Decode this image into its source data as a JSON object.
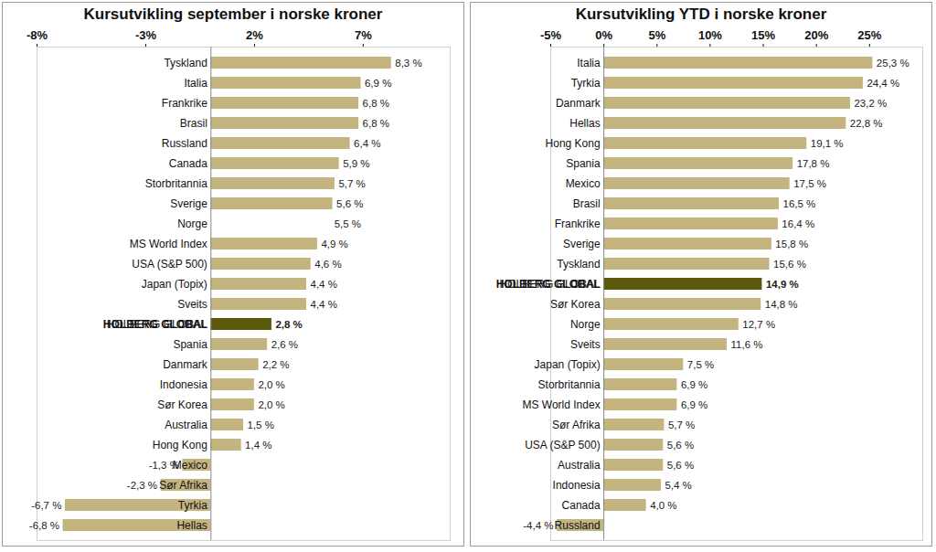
{
  "chart_data": [
    {
      "type": "bar",
      "orientation": "horizontal",
      "data_labels": true,
      "title": "Kursutvikling september i norske kroner",
      "categories": [
        "Tyskland",
        "Italia",
        "Frankrike",
        "Brasil",
        "Russland",
        "Canada",
        "Storbritannia",
        "Sverige",
        "Norge",
        "MS World Index",
        "USA (S&P 500)",
        "Japan (Topix)",
        "Sveits",
        "HOLBERG GLOBAL",
        "Spania",
        "Danmark",
        "Indonesia",
        "Sør Korea",
        "Australia",
        "Hong Kong",
        "Mexico",
        "Sør Afrika",
        "Tyrkia",
        "Hellas"
      ],
      "values": [
        8.3,
        6.9,
        6.8,
        6.8,
        6.4,
        5.9,
        5.7,
        5.6,
        5.5,
        4.9,
        4.6,
        4.4,
        4.4,
        2.8,
        2.6,
        2.2,
        2.0,
        2.0,
        1.5,
        1.4,
        -1.3,
        -2.3,
        -6.7,
        -6.8
      ],
      "value_labels": [
        "8,3 %",
        "6,9 %",
        "6,8 %",
        "6,8 %",
        "6,4 %",
        "5,9 %",
        "5,7 %",
        "5,6 %",
        "5,5 %",
        "4,9 %",
        "4,6 %",
        "4,4 %",
        "4,4 %",
        "2,8 %",
        "2,6 %",
        "2,2 %",
        "2,0 %",
        "2,0 %",
        "1,5 %",
        "1,4 %",
        "-1,3 %",
        "-2,3 %",
        "-6,7 %",
        "-6,8 %"
      ],
      "colors": [
        "#c4b47f",
        "#c4b47f",
        "#c4b47f",
        "#c4b47f",
        "#c4b47f",
        "#c4b47f",
        "#c4b47f",
        "#c4b47f",
        "#ffffff",
        "#c4b47f",
        "#c4b47f",
        "#c4b47f",
        "#c4b47f",
        "#5a5a0a",
        "#c4b47f",
        "#c4b47f",
        "#c4b47f",
        "#c4b47f",
        "#c4b47f",
        "#c4b47f",
        "#c4b47f",
        "#c4b47f",
        "#c4b47f",
        "#c4b47f"
      ],
      "xlim": [
        -8,
        11
      ],
      "xticks": [
        {
          "value": -8,
          "label": "-8%"
        },
        {
          "value": -3,
          "label": "-3%"
        },
        {
          "value": 2,
          "label": "2%"
        },
        {
          "value": 7,
          "label": "7%"
        }
      ]
    },
    {
      "type": "bar",
      "orientation": "horizontal",
      "data_labels": true,
      "title": "Kursutvikling YTD i norske kroner",
      "categories": [
        "Italia",
        "Tyrkia",
        "Danmark",
        "Hellas",
        "Hong Kong",
        "Spania",
        "Mexico",
        "Brasil",
        "Frankrike",
        "Sverige",
        "Tyskland",
        "HOLBERG GLOBAL",
        "Sør Korea",
        "Norge",
        "Sveits",
        "Japan (Topix)",
        "Storbritannia",
        "MS World Index",
        "Sør Afrika",
        "USA (S&P 500)",
        "Australia",
        "Indonesia",
        "Canada",
        "Russland"
      ],
      "values": [
        25.3,
        24.4,
        23.2,
        22.8,
        19.1,
        17.8,
        17.5,
        16.5,
        16.4,
        15.8,
        15.6,
        14.9,
        14.8,
        12.7,
        11.6,
        7.5,
        6.9,
        6.9,
        5.7,
        5.6,
        5.6,
        5.4,
        4.0,
        -4.4
      ],
      "value_labels": [
        "25,3 %",
        "24,4 %",
        "23,2 %",
        "22,8 %",
        "19,1 %",
        "17,8 %",
        "17,5 %",
        "16,5 %",
        "16,4 %",
        "15,8 %",
        "15,6 %",
        "14,9 %",
        "14,8 %",
        "12,7 %",
        "11,6 %",
        "7,5 %",
        "6,9 %",
        "6,9 %",
        "5,7 %",
        "5,6 %",
        "5,6 %",
        "5,4 %",
        "4,0 %",
        "-4,4 %"
      ],
      "colors": [
        "#c4b47f",
        "#c4b47f",
        "#c4b47f",
        "#c4b47f",
        "#c4b47f",
        "#c4b47f",
        "#c4b47f",
        "#c4b47f",
        "#c4b47f",
        "#c4b47f",
        "#c4b47f",
        "#5a5a0a",
        "#c4b47f",
        "#c4b47f",
        "#c4b47f",
        "#c4b47f",
        "#c4b47f",
        "#c4b47f",
        "#c4b47f",
        "#c4b47f",
        "#c4b47f",
        "#c4b47f",
        "#c4b47f",
        "#c4b47f"
      ],
      "xlim": [
        -5,
        30
      ],
      "xticks": [
        {
          "value": -5,
          "label": "-5%"
        },
        {
          "value": 0,
          "label": "0%"
        },
        {
          "value": 5,
          "label": "5%"
        },
        {
          "value": 10,
          "label": "10%"
        },
        {
          "value": 15,
          "label": "15%"
        },
        {
          "value": 20,
          "label": "20%"
        },
        {
          "value": 25,
          "label": "25%"
        }
      ]
    }
  ]
}
